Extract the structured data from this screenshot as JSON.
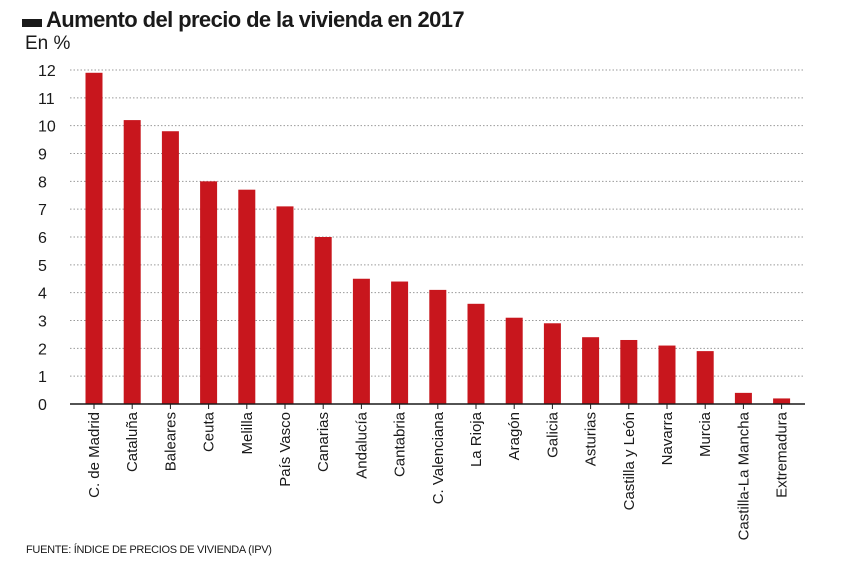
{
  "title": "Aumento del precio de la vivienda en 2017",
  "unit_label": "En %",
  "source": "FUENTE: ÍNDICE DE PRECIOS DE VIVIENDA (IPV)",
  "colors": {
    "bar": "#c8161d",
    "grid": "#9a9a9a",
    "axis": "#1a1a1a",
    "text": "#1a1a1a"
  },
  "chart_data": {
    "type": "bar",
    "categories": [
      "C. de Madrid",
      "Cataluña",
      "Baleares",
      "Ceuta",
      "Melilla",
      "País Vasco",
      "Canarias",
      "Andalucía",
      "Cantabria",
      "C. Valenciana",
      "La Rioja",
      "Aragón",
      "Galicia",
      "Asturias",
      "Castilla y León",
      "Navarra",
      "Murcia",
      "Castilla-La Mancha",
      "Extremadura"
    ],
    "values": [
      11.9,
      10.2,
      9.8,
      8.0,
      7.7,
      7.1,
      6.0,
      4.5,
      4.4,
      4.1,
      3.6,
      3.1,
      2.9,
      2.4,
      2.3,
      2.1,
      1.9,
      0.4,
      0.2
    ],
    "title": "Aumento del precio de la vivienda en 2017",
    "ylabel": "En %",
    "ylim": [
      0,
      12
    ],
    "yticks": [
      0,
      1,
      2,
      3,
      4,
      5,
      6,
      7,
      8,
      9,
      10,
      11,
      12
    ],
    "grid": true,
    "legend": "none"
  }
}
